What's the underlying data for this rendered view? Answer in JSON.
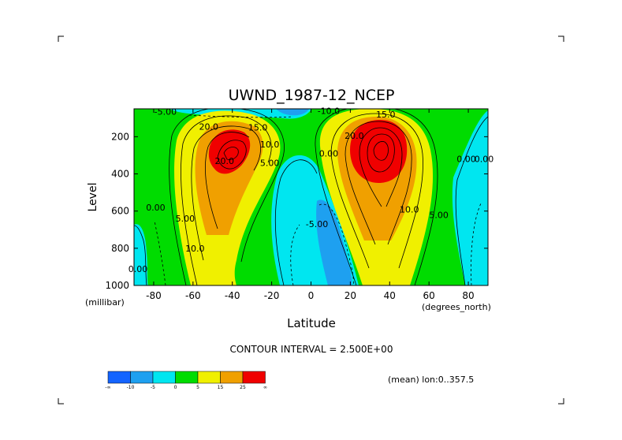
{
  "chart_data": {
    "type": "heatmap",
    "title": "UWND_1987-12_NCEP",
    "xlabel": "Latitude",
    "ylabel": "Level",
    "x_unit": "(degrees_north)",
    "y_unit": "(millibar)",
    "xlim": [
      -90,
      90
    ],
    "ylim": [
      1000,
      50
    ],
    "x_ticks": [
      "-80",
      "-60",
      "-40",
      "-20",
      "0",
      "20",
      "40",
      "60",
      "80"
    ],
    "x_tick_values": [
      -80,
      -60,
      -40,
      -20,
      0,
      20,
      40,
      60,
      80
    ],
    "y_ticks": [
      "200",
      "400",
      "600",
      "800",
      "1000"
    ],
    "y_tick_values": [
      200,
      400,
      600,
      800,
      1000
    ],
    "contour_interval_text": "CONTOUR INTERVAL = 2.500E+00",
    "mean_text": "(mean) lon:0..357.5",
    "colorbar": {
      "colors": [
        "#1464ff",
        "#1ea0f0",
        "#00e6f0",
        "#00dc00",
        "#f0f000",
        "#f0a000",
        "#f00000"
      ],
      "labels": [
        "-∞",
        "-10",
        "-5",
        "0",
        "5",
        "15",
        "25",
        "∞"
      ]
    },
    "contour_labels": [
      {
        "text": "-5.00",
        "lat": -74,
        "lev": 65
      },
      {
        "text": "-10.0",
        "lat": 9,
        "lev": 60
      },
      {
        "text": "20.0",
        "lat": -52,
        "lev": 145
      },
      {
        "text": "15.0",
        "lat": -27,
        "lev": 150
      },
      {
        "text": "20.0",
        "lat": -44,
        "lev": 330
      },
      {
        "text": "10.0",
        "lat": -21,
        "lev": 240
      },
      {
        "text": "5.00",
        "lat": -21,
        "lev": 340
      },
      {
        "text": "15.0",
        "lat": 38,
        "lev": 80
      },
      {
        "text": "20.0",
        "lat": 22,
        "lev": 195
      },
      {
        "text": "0.00",
        "lat": 9,
        "lev": 290
      },
      {
        "text": "0.00",
        "lat": -79,
        "lev": 580
      },
      {
        "text": "5.00",
        "lat": -64,
        "lev": 640
      },
      {
        "text": "10.0",
        "lat": -59,
        "lev": 800
      },
      {
        "text": "-5.00",
        "lat": 3,
        "lev": 670
      },
      {
        "text": "10.0",
        "lat": 50,
        "lev": 590
      },
      {
        "text": "5.00",
        "lat": 65,
        "lev": 620
      },
      {
        "text": "0.00",
        "lat": 79,
        "lev": 320
      },
      {
        "text": "0.00",
        "lat": 88,
        "lev": 320
      },
      {
        "text": "0.00",
        "lat": -88,
        "lev": 910
      }
    ]
  }
}
